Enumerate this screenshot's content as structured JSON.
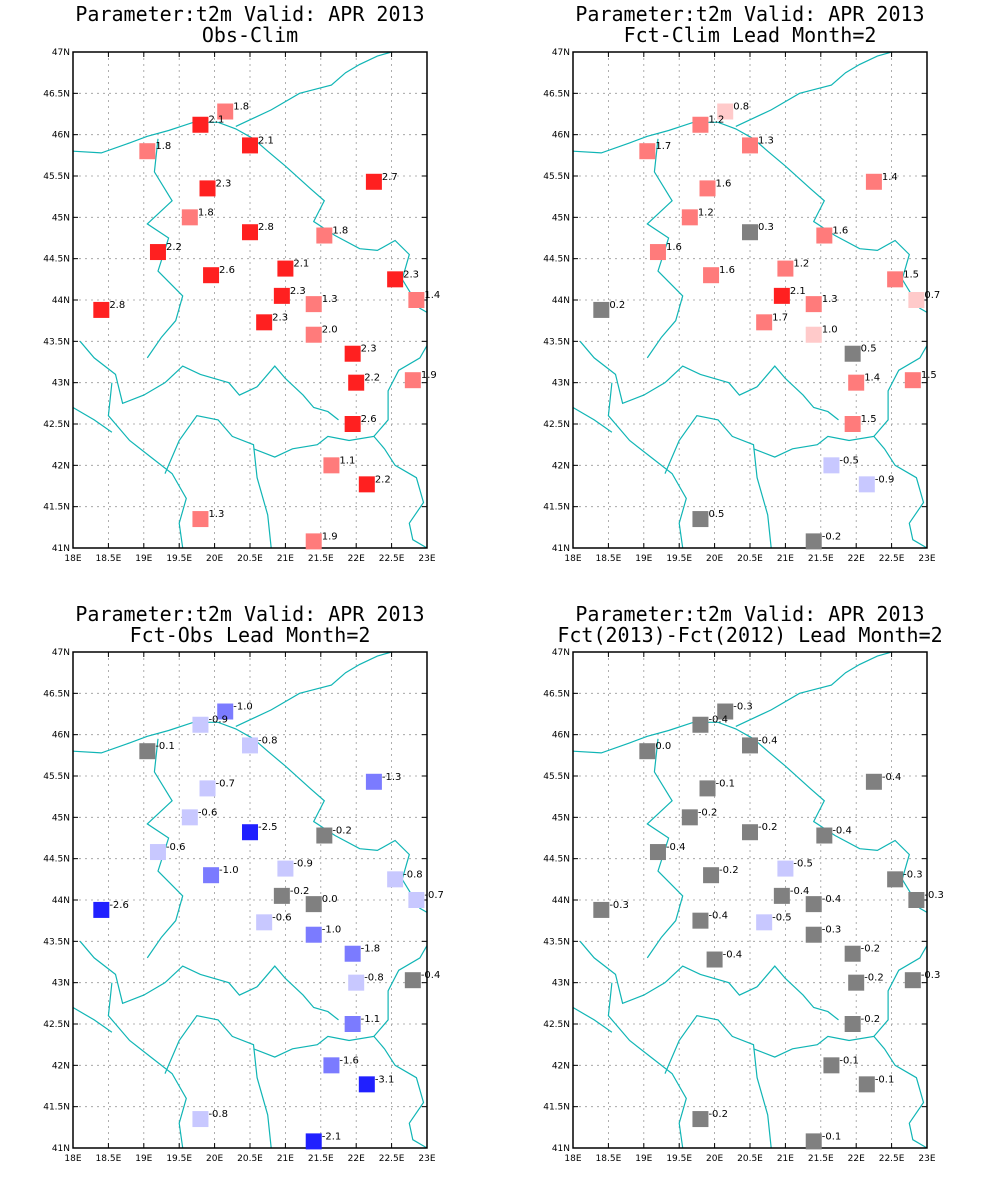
{
  "colors": {
    "border_line": "#10b5b5",
    "warm_strong": "#ff2020",
    "warm_light": "#ff7b7b",
    "warm_pale": "#ffcaca",
    "cool_strong": "#2020ff",
    "cool_mid": "#7b7bff",
    "cool_pale": "#c8c8ff",
    "neutral": "#808080"
  },
  "axes": {
    "lon_range": [
      18,
      23
    ],
    "lat_range": [
      41,
      47
    ],
    "lon_ticks": [
      "18E",
      "18.5E",
      "19E",
      "19.5E",
      "20E",
      "20.5E",
      "21E",
      "21.5E",
      "22E",
      "22.5E",
      "23E"
    ],
    "lat_ticks": [
      "41N",
      "41.5N",
      "42N",
      "42.5N",
      "43N",
      "43.5N",
      "44N",
      "44.5N",
      "45N",
      "45.5N",
      "46N",
      "46.5N",
      "47N"
    ]
  },
  "panels": [
    {
      "title_line1": "Parameter:t2m Valid: APR 2013",
      "title_line2": "Obs-Clim",
      "stations": [
        {
          "lon": 20.15,
          "lat": 46.28,
          "label": "1.8",
          "color": "#ff7b7b"
        },
        {
          "lon": 19.8,
          "lat": 46.12,
          "label": "2.1",
          "color": "#ff2020"
        },
        {
          "lon": 20.5,
          "lat": 45.87,
          "label": "2.1",
          "color": "#ff2020"
        },
        {
          "lon": 19.05,
          "lat": 45.8,
          "label": "1.8",
          "color": "#ff7b7b"
        },
        {
          "lon": 22.25,
          "lat": 45.43,
          "label": "2.7",
          "color": "#ff2020"
        },
        {
          "lon": 19.9,
          "lat": 45.35,
          "label": "2.3",
          "color": "#ff2020"
        },
        {
          "lon": 19.65,
          "lat": 45.0,
          "label": "1.8",
          "color": "#ff7b7b"
        },
        {
          "lon": 20.5,
          "lat": 44.82,
          "label": "2.8",
          "color": "#ff2020"
        },
        {
          "lon": 21.55,
          "lat": 44.78,
          "label": "1.8",
          "color": "#ff7b7b"
        },
        {
          "lon": 19.2,
          "lat": 44.58,
          "label": "2.2",
          "color": "#ff2020"
        },
        {
          "lon": 21.0,
          "lat": 44.38,
          "label": "2.1",
          "color": "#ff2020"
        },
        {
          "lon": 19.95,
          "lat": 44.3,
          "label": "2.6",
          "color": "#ff2020"
        },
        {
          "lon": 22.55,
          "lat": 44.25,
          "label": "2.3",
          "color": "#ff2020"
        },
        {
          "lon": 20.95,
          "lat": 44.05,
          "label": "2.3",
          "color": "#ff2020"
        },
        {
          "lon": 22.85,
          "lat": 44.0,
          "label": "1.4",
          "color": "#ff7b7b"
        },
        {
          "lon": 21.4,
          "lat": 43.95,
          "label": "1.3",
          "color": "#ff7b7b"
        },
        {
          "lon": 18.4,
          "lat": 43.88,
          "label": "2.8",
          "color": "#ff2020"
        },
        {
          "lon": 20.7,
          "lat": 43.73,
          "label": "2.3",
          "color": "#ff2020"
        },
        {
          "lon": 21.4,
          "lat": 43.58,
          "label": "2.0",
          "color": "#ff7b7b"
        },
        {
          "lon": 21.95,
          "lat": 43.35,
          "label": "2.3",
          "color": "#ff2020"
        },
        {
          "lon": 22.0,
          "lat": 43.0,
          "label": "2.2",
          "color": "#ff2020"
        },
        {
          "lon": 22.8,
          "lat": 43.03,
          "label": "1.9",
          "color": "#ff7b7b"
        },
        {
          "lon": 21.95,
          "lat": 42.5,
          "label": "2.6",
          "color": "#ff2020"
        },
        {
          "lon": 21.65,
          "lat": 42.0,
          "label": "1.1",
          "color": "#ff7b7b"
        },
        {
          "lon": 22.15,
          "lat": 41.77,
          "label": "2.2",
          "color": "#ff2020"
        },
        {
          "lon": 19.8,
          "lat": 41.35,
          "label": "1.3",
          "color": "#ff7b7b"
        },
        {
          "lon": 21.4,
          "lat": 41.08,
          "label": "1.9",
          "color": "#ff7b7b"
        }
      ]
    },
    {
      "title_line1": "Parameter:t2m Valid: APR 2013",
      "title_line2": "Fct-Clim Lead Month=2",
      "stations": [
        {
          "lon": 20.15,
          "lat": 46.28,
          "label": "0.8",
          "color": "#ffcaca"
        },
        {
          "lon": 19.8,
          "lat": 46.12,
          "label": "1.2",
          "color": "#ff7b7b"
        },
        {
          "lon": 20.5,
          "lat": 45.87,
          "label": "1.3",
          "color": "#ff7b7b"
        },
        {
          "lon": 19.05,
          "lat": 45.8,
          "label": "1.7",
          "color": "#ff7b7b"
        },
        {
          "lon": 22.25,
          "lat": 45.43,
          "label": "1.4",
          "color": "#ff7b7b"
        },
        {
          "lon": 19.9,
          "lat": 45.35,
          "label": "1.6",
          "color": "#ff7b7b"
        },
        {
          "lon": 19.65,
          "lat": 45.0,
          "label": "1.2",
          "color": "#ff7b7b"
        },
        {
          "lon": 20.5,
          "lat": 44.82,
          "label": "0.3",
          "color": "#808080"
        },
        {
          "lon": 21.55,
          "lat": 44.78,
          "label": "1.6",
          "color": "#ff7b7b"
        },
        {
          "lon": 19.2,
          "lat": 44.58,
          "label": "1.6",
          "color": "#ff7b7b"
        },
        {
          "lon": 21.0,
          "lat": 44.38,
          "label": "1.2",
          "color": "#ff7b7b"
        },
        {
          "lon": 19.95,
          "lat": 44.3,
          "label": "1.6",
          "color": "#ff7b7b"
        },
        {
          "lon": 22.55,
          "lat": 44.25,
          "label": "1.5",
          "color": "#ff7b7b"
        },
        {
          "lon": 20.95,
          "lat": 44.05,
          "label": "2.1",
          "color": "#ff2020"
        },
        {
          "lon": 22.85,
          "lat": 44.0,
          "label": "0.7",
          "color": "#ffcaca"
        },
        {
          "lon": 21.4,
          "lat": 43.95,
          "label": "1.3",
          "color": "#ff7b7b"
        },
        {
          "lon": 18.4,
          "lat": 43.88,
          "label": "0.2",
          "color": "#808080"
        },
        {
          "lon": 20.7,
          "lat": 43.73,
          "label": "1.7",
          "color": "#ff7b7b"
        },
        {
          "lon": 21.4,
          "lat": 43.58,
          "label": "1.0",
          "color": "#ffcaca"
        },
        {
          "lon": 21.95,
          "lat": 43.35,
          "label": "0.5",
          "color": "#808080"
        },
        {
          "lon": 22.0,
          "lat": 43.0,
          "label": "1.4",
          "color": "#ff7b7b"
        },
        {
          "lon": 22.8,
          "lat": 43.03,
          "label": "1.5",
          "color": "#ff7b7b"
        },
        {
          "lon": 21.95,
          "lat": 42.5,
          "label": "1.5",
          "color": "#ff7b7b"
        },
        {
          "lon": 21.65,
          "lat": 42.0,
          "label": "-0.5",
          "color": "#c8c8ff"
        },
        {
          "lon": 22.15,
          "lat": 41.77,
          "label": "-0.9",
          "color": "#c8c8ff"
        },
        {
          "lon": 19.8,
          "lat": 41.35,
          "label": "0.5",
          "color": "#808080"
        },
        {
          "lon": 21.4,
          "lat": 41.08,
          "label": "-0.2",
          "color": "#808080"
        }
      ]
    },
    {
      "title_line1": "Parameter:t2m Valid: APR 2013",
      "title_line2": "Fct-Obs Lead Month=2",
      "stations": [
        {
          "lon": 20.15,
          "lat": 46.28,
          "label": "-1.0",
          "color": "#7b7bff"
        },
        {
          "lon": 19.8,
          "lat": 46.12,
          "label": "-0.9",
          "color": "#c8c8ff"
        },
        {
          "lon": 20.5,
          "lat": 45.87,
          "label": "-0.8",
          "color": "#c8c8ff"
        },
        {
          "lon": 19.05,
          "lat": 45.8,
          "label": "-0.1",
          "color": "#808080"
        },
        {
          "lon": 22.25,
          "lat": 45.43,
          "label": "-1.3",
          "color": "#7b7bff"
        },
        {
          "lon": 19.9,
          "lat": 45.35,
          "label": "-0.7",
          "color": "#c8c8ff"
        },
        {
          "lon": 19.65,
          "lat": 45.0,
          "label": "-0.6",
          "color": "#c8c8ff"
        },
        {
          "lon": 20.5,
          "lat": 44.82,
          "label": "-2.5",
          "color": "#2020ff"
        },
        {
          "lon": 21.55,
          "lat": 44.78,
          "label": "-0.2",
          "color": "#808080"
        },
        {
          "lon": 19.2,
          "lat": 44.58,
          "label": "-0.6",
          "color": "#c8c8ff"
        },
        {
          "lon": 21.0,
          "lat": 44.38,
          "label": "-0.9",
          "color": "#c8c8ff"
        },
        {
          "lon": 19.95,
          "lat": 44.3,
          "label": "-1.0",
          "color": "#7b7bff"
        },
        {
          "lon": 22.55,
          "lat": 44.25,
          "label": "-0.8",
          "color": "#c8c8ff"
        },
        {
          "lon": 20.95,
          "lat": 44.05,
          "label": "-0.2",
          "color": "#808080"
        },
        {
          "lon": 22.85,
          "lat": 44.0,
          "label": "-0.7",
          "color": "#c8c8ff"
        },
        {
          "lon": 21.4,
          "lat": 43.95,
          "label": "0.0",
          "color": "#808080"
        },
        {
          "lon": 18.4,
          "lat": 43.88,
          "label": "-2.6",
          "color": "#2020ff"
        },
        {
          "lon": 20.7,
          "lat": 43.73,
          "label": "-0.6",
          "color": "#c8c8ff"
        },
        {
          "lon": 21.4,
          "lat": 43.58,
          "label": "-1.0",
          "color": "#7b7bff"
        },
        {
          "lon": 21.95,
          "lat": 43.35,
          "label": "-1.8",
          "color": "#7b7bff"
        },
        {
          "lon": 22.0,
          "lat": 43.0,
          "label": "-0.8",
          "color": "#c8c8ff"
        },
        {
          "lon": 22.8,
          "lat": 43.03,
          "label": "-0.4",
          "color": "#808080"
        },
        {
          "lon": 21.95,
          "lat": 42.5,
          "label": "-1.1",
          "color": "#7b7bff"
        },
        {
          "lon": 21.65,
          "lat": 42.0,
          "label": "-1.6",
          "color": "#7b7bff"
        },
        {
          "lon": 22.15,
          "lat": 41.77,
          "label": "-3.1",
          "color": "#2020ff"
        },
        {
          "lon": 19.8,
          "lat": 41.35,
          "label": "-0.8",
          "color": "#c8c8ff"
        },
        {
          "lon": 21.4,
          "lat": 41.08,
          "label": "-2.1",
          "color": "#2020ff"
        }
      ]
    },
    {
      "title_line1": "Parameter:t2m Valid: APR 2013",
      "title_line2": "Fct(2013)-Fct(2012) Lead Month=2",
      "stations": [
        {
          "lon": 20.15,
          "lat": 46.28,
          "label": "-0.3",
          "color": "#808080"
        },
        {
          "lon": 19.8,
          "lat": 46.12,
          "label": "-0.4",
          "color": "#808080"
        },
        {
          "lon": 20.5,
          "lat": 45.87,
          "label": "-0.4",
          "color": "#808080"
        },
        {
          "lon": 19.05,
          "lat": 45.8,
          "label": "0.0",
          "color": "#808080"
        },
        {
          "lon": 22.25,
          "lat": 45.43,
          "label": "-0.4",
          "color": "#808080"
        },
        {
          "lon": 19.9,
          "lat": 45.35,
          "label": "-0.1",
          "color": "#808080"
        },
        {
          "lon": 19.65,
          "lat": 45.0,
          "label": "-0.2",
          "color": "#808080"
        },
        {
          "lon": 20.5,
          "lat": 44.82,
          "label": "-0.2",
          "color": "#808080"
        },
        {
          "lon": 21.55,
          "lat": 44.78,
          "label": "-0.4",
          "color": "#808080"
        },
        {
          "lon": 19.2,
          "lat": 44.58,
          "label": "-0.4",
          "color": "#808080"
        },
        {
          "lon": 21.0,
          "lat": 44.38,
          "label": "-0.5",
          "color": "#c8c8ff"
        },
        {
          "lon": 19.95,
          "lat": 44.3,
          "label": "-0.2",
          "color": "#808080"
        },
        {
          "lon": 22.55,
          "lat": 44.25,
          "label": "-0.3",
          "color": "#808080"
        },
        {
          "lon": 20.95,
          "lat": 44.05,
          "label": "-0.4",
          "color": "#808080"
        },
        {
          "lon": 22.85,
          "lat": 44.0,
          "label": "-0.3",
          "color": "#808080"
        },
        {
          "lon": 21.4,
          "lat": 43.95,
          "label": "-0.4",
          "color": "#808080"
        },
        {
          "lon": 18.4,
          "lat": 43.88,
          "label": "-0.3",
          "color": "#808080"
        },
        {
          "lon": 19.8,
          "lat": 43.75,
          "label": "-0.4",
          "color": "#808080"
        },
        {
          "lon": 20.7,
          "lat": 43.73,
          "label": "-0.5",
          "color": "#c8c8ff"
        },
        {
          "lon": 21.4,
          "lat": 43.58,
          "label": "-0.3",
          "color": "#808080"
        },
        {
          "lon": 21.95,
          "lat": 43.35,
          "label": "-0.2",
          "color": "#808080"
        },
        {
          "lon": 20.0,
          "lat": 43.28,
          "label": "-0.4",
          "color": "#808080"
        },
        {
          "lon": 22.0,
          "lat": 43.0,
          "label": "-0.2",
          "color": "#808080"
        },
        {
          "lon": 22.8,
          "lat": 43.03,
          "label": "-0.3",
          "color": "#808080"
        },
        {
          "lon": 21.95,
          "lat": 42.5,
          "label": "-0.2",
          "color": "#808080"
        },
        {
          "lon": 21.65,
          "lat": 42.0,
          "label": "-0.1",
          "color": "#808080"
        },
        {
          "lon": 22.15,
          "lat": 41.77,
          "label": "-0.1",
          "color": "#808080"
        },
        {
          "lon": 19.8,
          "lat": 41.35,
          "label": "-0.2",
          "color": "#808080"
        },
        {
          "lon": 21.4,
          "lat": 41.08,
          "label": "-0.1",
          "color": "#808080"
        }
      ]
    }
  ]
}
